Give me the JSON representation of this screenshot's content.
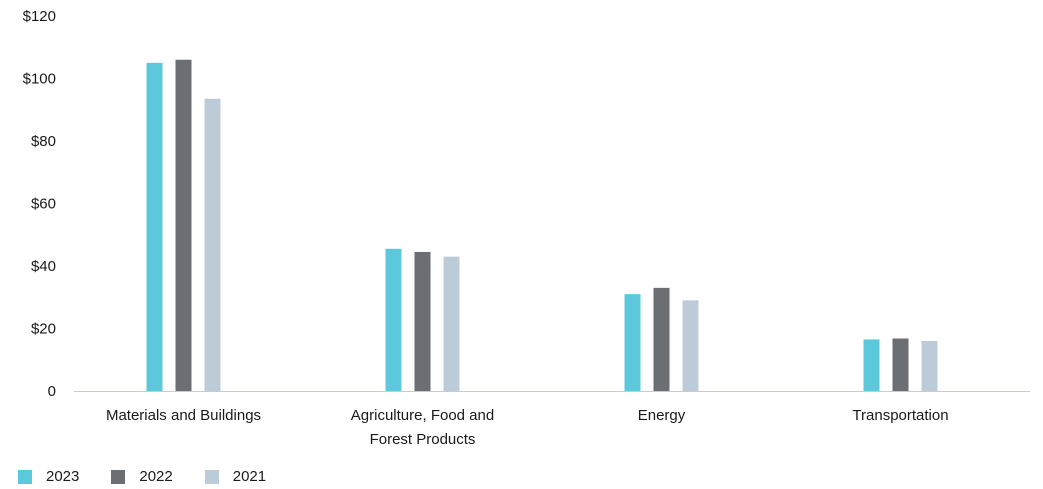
{
  "chart_data": {
    "type": "bar",
    "title": "",
    "xlabel": "",
    "ylabel": "",
    "ylim": [
      0,
      120
    ],
    "yticks": [
      0,
      20,
      40,
      60,
      80,
      100,
      120
    ],
    "ytick_labels": [
      "0",
      "$20",
      "$40",
      "$60",
      "$80",
      "$100",
      "$120"
    ],
    "categories": [
      [
        "Materials and Buildings"
      ],
      [
        "Agriculture, Food and",
        "Forest Products"
      ],
      [
        "Energy"
      ],
      [
        "Transportation"
      ]
    ],
    "series": [
      {
        "name": "2023",
        "color": "#5bc8dc",
        "values": [
          105,
          45.5,
          31,
          16.5
        ]
      },
      {
        "name": "2022",
        "color": "#6b6e73",
        "values": [
          106,
          44.5,
          33,
          16.8
        ]
      },
      {
        "name": "2021",
        "color": "#bccbd8",
        "values": [
          93.5,
          43,
          29,
          16
        ]
      }
    ],
    "legend_position": "bottom-left",
    "grid": false
  }
}
